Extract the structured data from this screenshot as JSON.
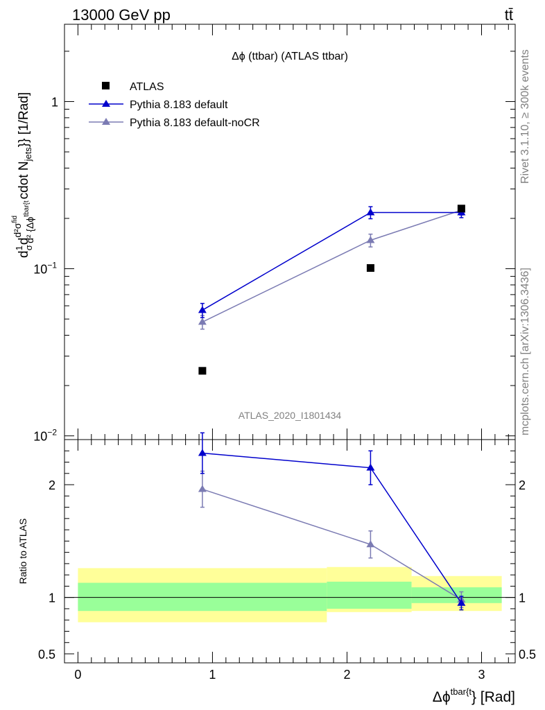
{
  "header": {
    "energy_label": "13000 GeV pp",
    "process_label": "tt̄"
  },
  "side_labels": {
    "rivet": "Rivet 3.1.10, ≥ 300k events",
    "mcplots": "mcplots.cern.ch [arXiv:1306.3436]"
  },
  "chart_data": [
    {
      "type": "line",
      "panel": "main",
      "title": "Δϕ (ttbar) (ATLAS ttbar)",
      "analysis_tag": "ATLAS_2020_I1801434",
      "xlabel": "Δϕ^{tbar{t}} [Rad]",
      "xlabel_main": "Δϕ",
      "xlabel_sup": "tbar{t",
      "xlabel_tail": "} [Rad]",
      "ylabel": "d1/σ d d²σ^fid / d² {Δϕ^{tbar{t}}} cdot N_jets}} [1/Rad]",
      "ylabel_prefix": "d",
      "ylabel_one": "1",
      "ylabel_sigma": "σ",
      "ylabel_d": "d",
      "ylabel_num": "d²σ",
      "ylabel_num_sup": "fid",
      "ylabel_den": "d² {Δϕ",
      "ylabel_den_sup": "tbar{t",
      "ylabel_tail": "cdot N",
      "ylabel_tail_sub": "jets",
      "ylabel_tail2": "}} [1/Rad]",
      "yscale": "log",
      "xlim": [
        -0.1,
        3.25
      ],
      "ylim": [
        0.0095,
        2.9
      ],
      "y_ticks": [
        {
          "value": 0.01,
          "base": "10",
          "exp": "−2"
        },
        {
          "value": 0.1,
          "base": "10",
          "exp": "−1"
        },
        {
          "value": 1,
          "base": "1",
          "exp": ""
        }
      ],
      "legend_position": "top-left",
      "series": [
        {
          "name": "ATLAS",
          "marker": "square",
          "color": "#000000",
          "x": [
            0.925,
            2.175,
            2.85
          ],
          "y": [
            0.0245,
            0.101,
            0.229
          ],
          "yerr": [
            0,
            0,
            0
          ]
        },
        {
          "name": "Pythia 8.183 default",
          "marker": "triangle",
          "color": "#0000cc",
          "x": [
            0.925,
            2.175,
            2.85
          ],
          "y": [
            0.0565,
            0.217,
            0.217
          ],
          "yerr": [
            0.0055,
            0.018,
            0.015
          ]
        },
        {
          "name": "Pythia 8.183 default-noCR",
          "marker": "triangle",
          "color": "#7b7bb3",
          "x": [
            0.925,
            2.175,
            2.85
          ],
          "y": [
            0.048,
            0.148,
            0.224
          ],
          "yerr": [
            0.0045,
            0.013,
            0.015
          ]
        }
      ]
    },
    {
      "type": "line",
      "panel": "ratio",
      "ylabel": "Ratio to ATLAS",
      "xlim": [
        -0.1,
        3.25
      ],
      "ylim": [
        0.42,
        2.4
      ],
      "x_ticks": [
        "0",
        "1",
        "2",
        "3"
      ],
      "y_ticks": [
        {
          "value": 0.5,
          "label": "0.5"
        },
        {
          "value": 1,
          "label": "1"
        },
        {
          "value": 2,
          "label": "2"
        }
      ],
      "bands": [
        {
          "x0": 0,
          "x1": 1.85,
          "green": [
            0.88,
            1.13
          ],
          "yellow": [
            0.78,
            1.26
          ]
        },
        {
          "x0": 1.85,
          "x1": 2.48,
          "green": [
            0.9,
            1.14
          ],
          "yellow": [
            0.87,
            1.27
          ]
        },
        {
          "x0": 2.48,
          "x1": 3.15,
          "green": [
            0.95,
            1.09
          ],
          "yellow": [
            0.88,
            1.19
          ]
        }
      ],
      "series": [
        {
          "name": "Pythia 8.183 default",
          "color": "#0000cc",
          "x": [
            0.925,
            2.175,
            2.85
          ],
          "y": [
            2.28,
            2.15,
            0.95
          ],
          "yerr": [
            0.18,
            0.15,
            0.06
          ]
        },
        {
          "name": "Pythia 8.183 default-noCR",
          "color": "#7b7bb3",
          "x": [
            0.925,
            2.175,
            2.85
          ],
          "y": [
            1.96,
            1.47,
            0.98
          ],
          "yerr": [
            0.16,
            0.12,
            0.07
          ]
        }
      ]
    }
  ]
}
